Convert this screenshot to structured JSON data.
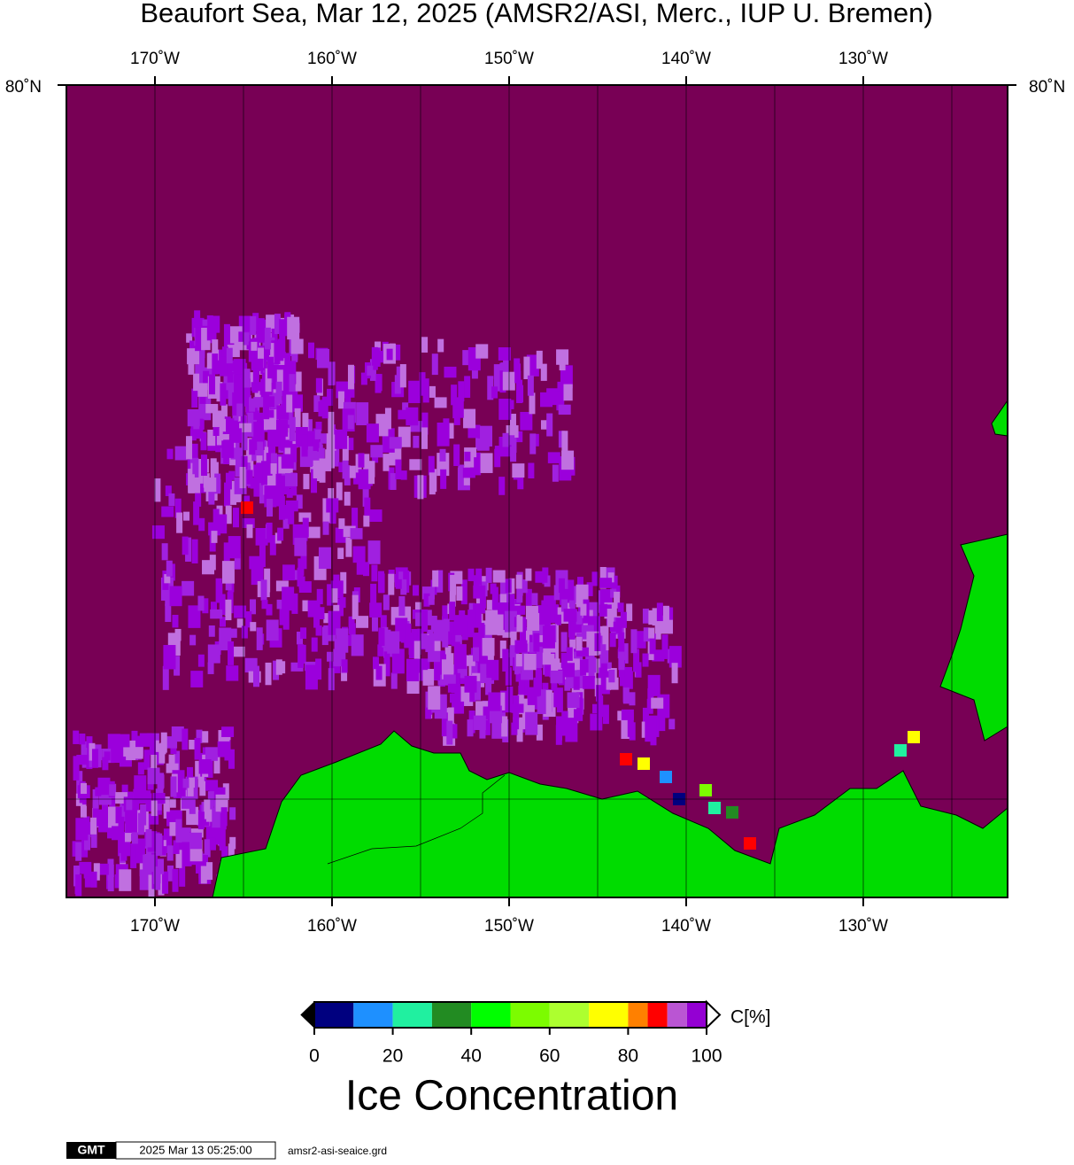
{
  "map": {
    "title": "Beaufort Sea, Mar 12, 2025 (AMSR2/ASI, Merc., IUP U. Bremen)",
    "lonlim": [
      -175,
      -121.85
    ],
    "lonticks": [
      {
        "value": -170,
        "label": "170˚W"
      },
      {
        "value": -160,
        "label": "160˚W"
      },
      {
        "value": -150,
        "label": "150˚W"
      },
      {
        "value": -140,
        "label": "140˚W"
      },
      {
        "value": -130,
        "label": "130˚W"
      }
    ],
    "graticule_lons": [
      -170,
      -165,
      -160,
      -155,
      -150,
      -145,
      -140,
      -135,
      -130,
      -125
    ],
    "lat_label": {
      "value": 80,
      "label": "80˚N"
    },
    "colorbar": {
      "label": "C[%]",
      "title": "Ice Concentration",
      "lim": [
        0,
        100
      ],
      "ticks": [
        0,
        20,
        40,
        60,
        80,
        100
      ],
      "bins": [
        0,
        10,
        20,
        30,
        40,
        50,
        60,
        70,
        80,
        85,
        90,
        95,
        100
      ],
      "colors": [
        "#00007f",
        "#1e90ff",
        "#20f0a0",
        "#228b22",
        "#00ff00",
        "#7cfc00",
        "#adff2f",
        "#ffff00",
        "#ff8000",
        "#ff0000",
        "#ba55d3",
        "#9400d3"
      ]
    },
    "footer": {
      "logo": "GMT",
      "timestamp": "2025 Mar 13 05:25:00",
      "file": "amsr2-asi-seaice.grd"
    }
  }
}
